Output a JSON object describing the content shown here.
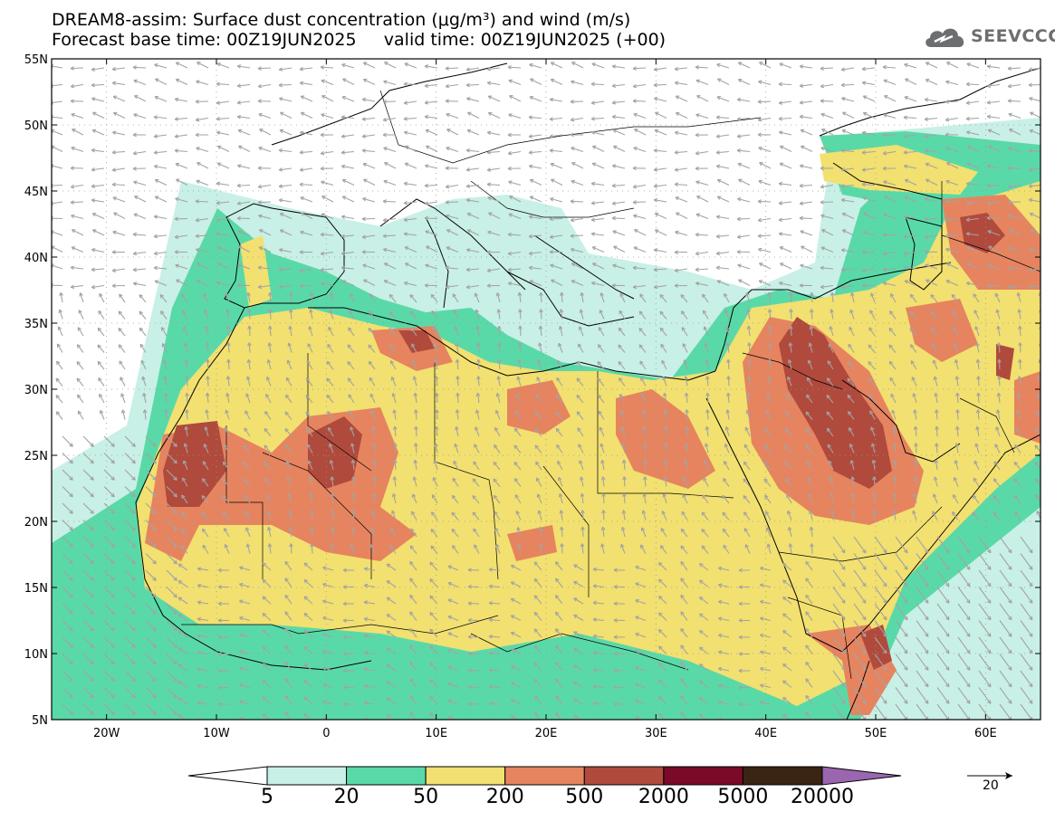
{
  "header": {
    "title_line1": "DREAM8-assim: Surface dust concentration (μg/m³) and wind (m/s)",
    "title_line2": "Forecast base time: 00Z19JUN2025     valid time: 00Z19JUN2025 (+00)"
  },
  "logo": {
    "text": "SEEVCCC",
    "color": "#6d6e70",
    "icon": "cloud-icon"
  },
  "map": {
    "lon_range": [
      -25,
      65
    ],
    "lat_range": [
      5,
      55
    ],
    "lon_ticks": [
      {
        "v": -20,
        "label": "20W"
      },
      {
        "v": -10,
        "label": "10W"
      },
      {
        "v": 0,
        "label": "0"
      },
      {
        "v": 10,
        "label": "10E"
      },
      {
        "v": 20,
        "label": "20E"
      },
      {
        "v": 30,
        "label": "30E"
      },
      {
        "v": 40,
        "label": "40E"
      },
      {
        "v": 50,
        "label": "50E"
      },
      {
        "v": 60,
        "label": "60E"
      }
    ],
    "lat_ticks": [
      {
        "v": 5,
        "label": "5N"
      },
      {
        "v": 10,
        "label": "10N"
      },
      {
        "v": 15,
        "label": "15N"
      },
      {
        "v": 20,
        "label": "20N"
      },
      {
        "v": 25,
        "label": "25N"
      },
      {
        "v": 30,
        "label": "30N"
      },
      {
        "v": 35,
        "label": "35N"
      },
      {
        "v": 40,
        "label": "40N"
      },
      {
        "v": 45,
        "label": "45N"
      },
      {
        "v": 50,
        "label": "50N"
      },
      {
        "v": 55,
        "label": "55N"
      }
    ],
    "grid": "dotted"
  },
  "colorbar": {
    "labels": [
      "5",
      "20",
      "50",
      "200",
      "500",
      "2000",
      "5000",
      "20000"
    ],
    "colors": [
      "#c8f0e6",
      "#5ad9a8",
      "#f2e070",
      "#e6845f",
      "#b04a3c",
      "#7a0a28",
      "#3a2414"
    ],
    "under_color": "#ffffff",
    "over_color": "#9a66b0"
  },
  "wind_reference": {
    "label": "20"
  }
}
